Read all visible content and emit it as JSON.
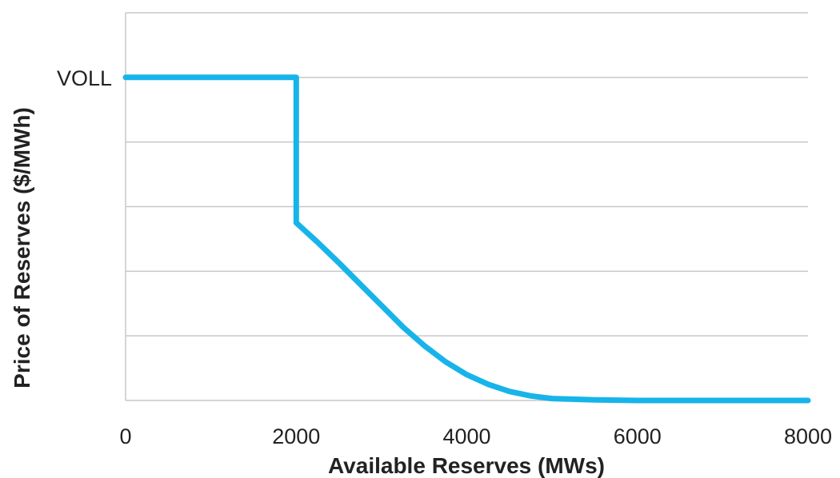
{
  "chart_data": {
    "type": "line",
    "title": "",
    "xlabel": "Available Reserves (MWs)",
    "ylabel": "Price of Reserves ($/MWh)",
    "xlim": [
      0,
      8000
    ],
    "x_ticks": [
      "0",
      "2000",
      "4000",
      "6000",
      "8000"
    ],
    "x_tick_values": [
      0,
      2000,
      4000,
      6000,
      8000
    ],
    "ylim": [
      0,
      6
    ],
    "y_tick_labels": [
      {
        "value": 5,
        "label": "VOLL"
      }
    ],
    "grid": true,
    "legend": "none",
    "line_color": "#17b4ea",
    "grid_color": "#c8c8c8",
    "series": [
      {
        "values": [
          {
            "x": 0,
            "y": 5
          },
          {
            "x": 2000,
            "y": 5
          },
          {
            "x": 2000,
            "y": 2.75
          },
          {
            "x": 2250,
            "y": 2.45
          },
          {
            "x": 2500,
            "y": 2.13
          },
          {
            "x": 2750,
            "y": 1.8
          },
          {
            "x": 3000,
            "y": 1.47
          },
          {
            "x": 3250,
            "y": 1.14
          },
          {
            "x": 3500,
            "y": 0.85
          },
          {
            "x": 3750,
            "y": 0.6
          },
          {
            "x": 4000,
            "y": 0.4
          },
          {
            "x": 4250,
            "y": 0.25
          },
          {
            "x": 4500,
            "y": 0.14
          },
          {
            "x": 4750,
            "y": 0.07
          },
          {
            "x": 5000,
            "y": 0.03
          },
          {
            "x": 5500,
            "y": 0.01
          },
          {
            "x": 6000,
            "y": 0
          },
          {
            "x": 7000,
            "y": 0
          },
          {
            "x": 8000,
            "y": 0
          }
        ]
      }
    ]
  }
}
